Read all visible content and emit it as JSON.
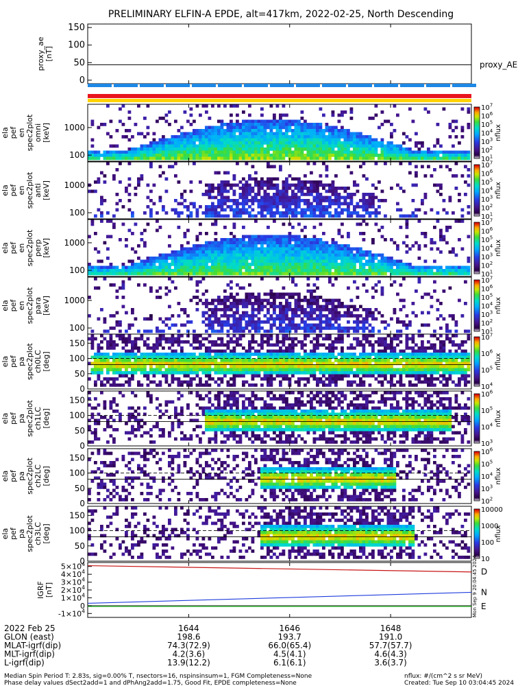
{
  "title": "PRELIMINARY ELFIN-A EPDE, alt=417km, 2022-02-25, North Descending",
  "colors": {
    "ae_bar": "#1e88e5",
    "red_bar": "#e8141e",
    "yellow_bar": "#ffd200",
    "bz_line": "#c81414",
    "bn_line": "#1e3cdc",
    "be_line": "#14b414"
  },
  "chart_data": [
    {
      "type": "line",
      "panel": "proxy_ae",
      "ylabel": "proxy_ae\n[nT]",
      "yticks": [
        0,
        50,
        100,
        150
      ],
      "ylim": [
        -10,
        160
      ],
      "series": [
        {
          "name": "proxy_AE",
          "x": [
            1642.0,
            1649.6
          ],
          "values": [
            44,
            44
          ]
        }
      ]
    },
    {
      "type": "heatmap",
      "panel": "spectra",
      "ylabel": "ela\npef\nen\nspec2plot\nomni\n[keV]",
      "ylabels": [
        "ela\npef\nen\nspec2plot\nomni\n[keV]",
        "ela\npef\nen\nspec2plot\nanti\n[keV]",
        "ela\npef\nen\nspec2plot\nperp\n[keV]",
        "ela\npef\nen\nspec2plot\npara\n[keV]"
      ],
      "yscale": "log",
      "yticks": [
        100,
        1000
      ],
      "ylim": [
        60,
        7000
      ],
      "colorbar": {
        "label": "nflux",
        "ticks": [
          "10^7",
          "10^6",
          "10^5",
          "10^4",
          "10^3",
          "10^2",
          "10^1"
        ]
      }
    },
    {
      "type": "heatmap",
      "panel": "pitch",
      "ylabels": [
        "ela\npef\npa\nspec2plot\nch0LC\n[deg]",
        "ela\npef\npa\nspec2plot\nch1LC\n[deg]",
        "ela\npef\npa\nspec2plot\nch2LC\n[deg]",
        "ela\npef\npa\nspec2plot\nch3LC\n[deg]"
      ],
      "yticks": [
        0,
        50,
        100,
        150
      ],
      "ylim": [
        0,
        180
      ],
      "colorbars": [
        {
          "label": "nflux",
          "ticks": [
            "10^7",
            "10^6",
            "10^5",
            "10^4"
          ]
        },
        {
          "label": "nflux",
          "ticks": [
            "10^6",
            "10^5",
            "10^4",
            "10^3"
          ]
        },
        {
          "label": "nflux",
          "ticks": [
            "10^6",
            "10^5",
            "10^4",
            "10^3",
            "10^2"
          ]
        },
        {
          "label": "nflux",
          "ticks": [
            "10000",
            "1000",
            "100",
            "10"
          ]
        }
      ]
    },
    {
      "type": "line",
      "panel": "igrf",
      "ylabel": "IGRF\n[nT]",
      "yticks": [
        "-1×10^4",
        "0",
        "1×10^4",
        "2×10^4",
        "3×10^4",
        "4×10^4",
        "5×10^4"
      ],
      "ylim": [
        -15000,
        55000
      ],
      "series": [
        {
          "name": "D",
          "x": [
            1642.0,
            1649.6
          ],
          "values": [
            51000,
            43000
          ]
        },
        {
          "name": "N",
          "x": [
            1642.0,
            1649.6
          ],
          "values": [
            3000,
            17000
          ]
        },
        {
          "name": "E",
          "x": [
            1642.0,
            1649.6
          ],
          "values": [
            -1000,
            -1000
          ]
        }
      ]
    }
  ],
  "xaxis": {
    "xlim": [
      1642.0,
      1649.6
    ],
    "ticks": [
      "1644",
      "1646",
      "1648"
    ],
    "tick_values": [
      1644,
      1646,
      1648
    ]
  },
  "rows": [
    {
      "label": "2022 Feb 25",
      "values": [
        "1644",
        "1646",
        "1648"
      ]
    },
    {
      "label": "GLON (east)",
      "values": [
        "198.6",
        "193.7",
        "191.0"
      ]
    },
    {
      "label": "MLAT-igrf(dip)",
      "values": [
        "74.3(72.9)",
        "66.0(65.4)",
        "57.7(57.7)"
      ]
    },
    {
      "label": "MLT-igrf(dip)",
      "values": [
        "4.2(3.6)",
        "4.5(4.1)",
        "4.6(4.3)"
      ]
    },
    {
      "label": "L-igrf(dip)",
      "values": [
        "13.9(12.2)",
        "6.1(6.1)",
        "3.6(3.7)"
      ]
    }
  ],
  "footer": {
    "line1": "Median Spin Period T: 2.83s, sig=0.00% T, nsectors=16, nspinsinsum=1, FGM Completeness=None",
    "line2": "Phase delay values dSect2add=1 and dPhAng2add=1.75, Good Fit, EPDE completeness=None",
    "right1": "nflux: #/(cm^2 s sr MeV)",
    "right2": "Created: Tue Sep 10 03:04:45 2024",
    "side_stamp": "Mon Sep 9 20:04:45 2024"
  }
}
